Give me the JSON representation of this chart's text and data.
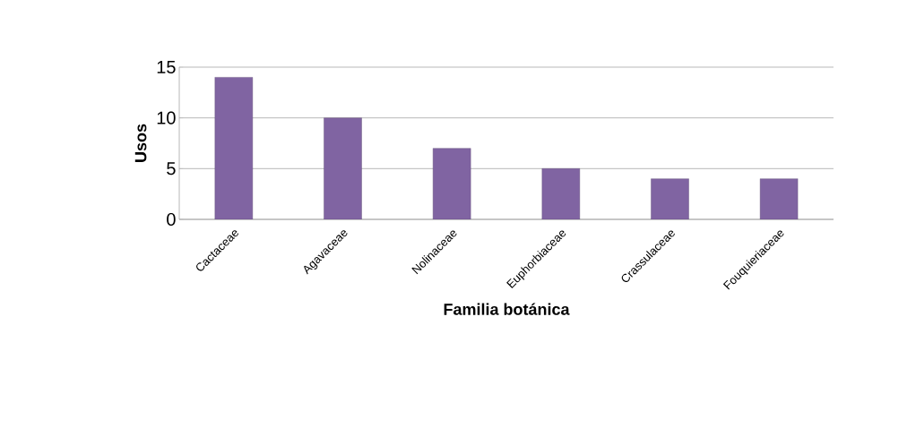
{
  "chart_data": {
    "type": "bar",
    "xlabel": "Familia botánica",
    "ylabel": "Usos",
    "categories": [
      "Cactaceae",
      "Agavaceae",
      "Nolinaceae",
      "Euphorbiaceae",
      "Crassulaceae",
      "Fouquieriaceae"
    ],
    "values": [
      14,
      10,
      7,
      5,
      4,
      4
    ],
    "color": "#8064a2",
    "ylim": [
      0,
      15
    ],
    "yticks": [
      0,
      5,
      10,
      15
    ],
    "grid": "y"
  }
}
